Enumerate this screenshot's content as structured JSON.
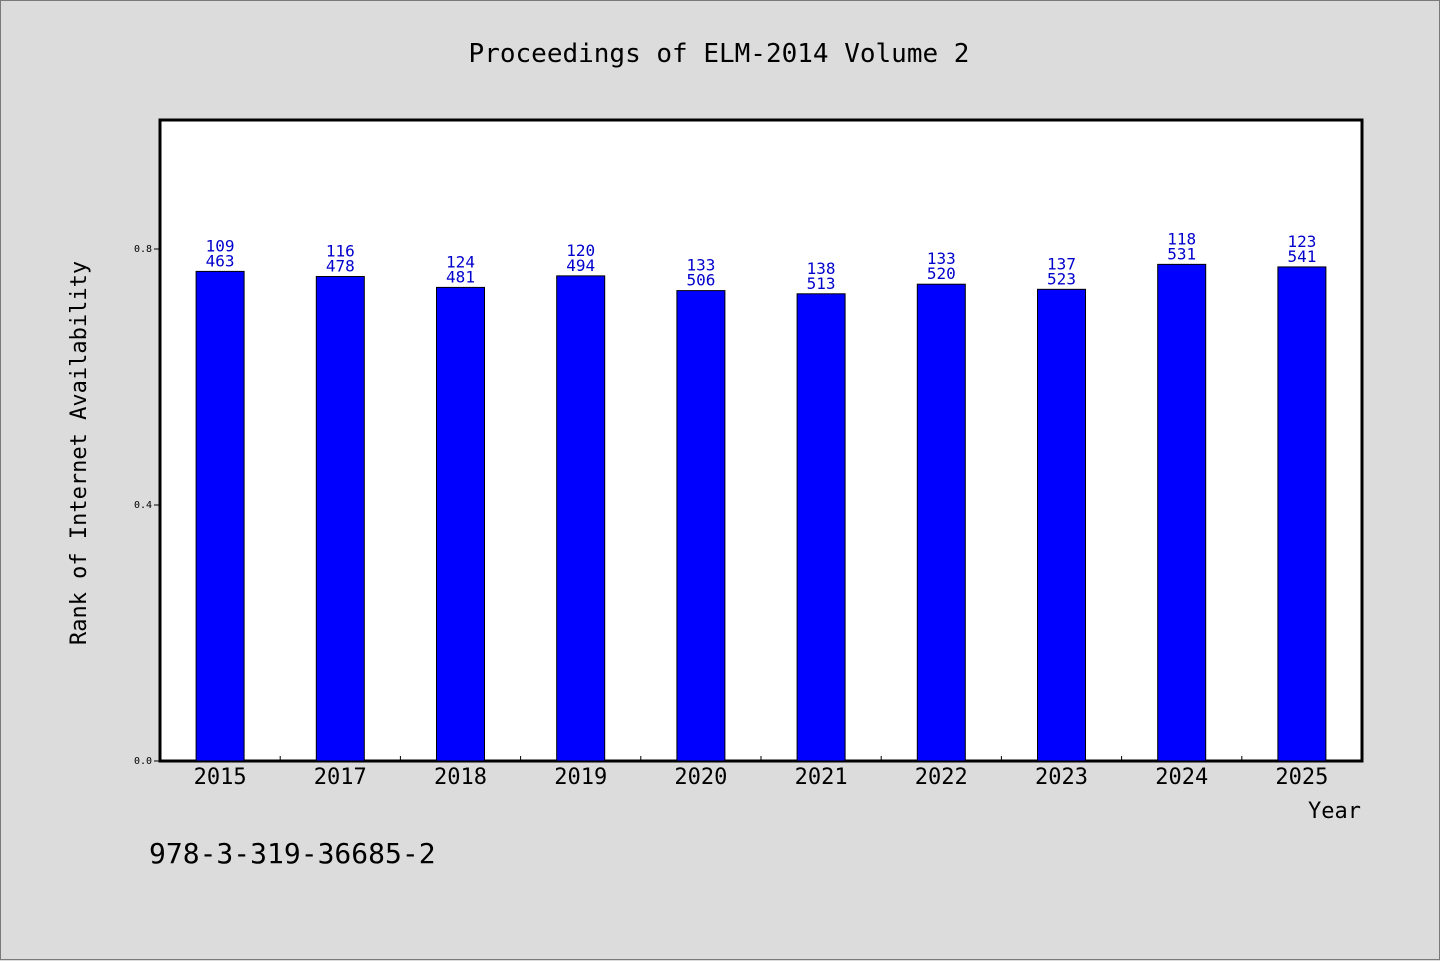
{
  "colors": {
    "background": "#dcdcdc",
    "plot_background": "#ffffff",
    "bar": "#0000ff",
    "bar_label": "#0000cc",
    "axis": "#000000"
  },
  "isbn": "978-3-319-36685-2",
  "chart_data": {
    "type": "bar",
    "title": "Proceedings of ELM-2014 Volume 2",
    "xlabel": "Year",
    "ylabel": "Rank of Internet Availability",
    "categories": [
      "2015",
      "2017",
      "2018",
      "2019",
      "2020",
      "2021",
      "2022",
      "2023",
      "2024",
      "2025"
    ],
    "values": [
      0.765,
      0.757,
      0.74,
      0.758,
      0.735,
      0.73,
      0.745,
      0.737,
      0.776,
      0.772
    ],
    "labels_top": [
      "109",
      "116",
      "124",
      "120",
      "133",
      "138",
      "133",
      "137",
      "118",
      "123"
    ],
    "labels_bottom": [
      "463",
      "478",
      "481",
      "494",
      "506",
      "513",
      "520",
      "523",
      "531",
      "541"
    ],
    "ylim": [
      0,
      1.0
    ],
    "yticks": [
      0.0,
      0.4,
      0.8
    ],
    "ytick_labels": [
      "0.0",
      "0.4",
      "0.8"
    ],
    "grid": false,
    "legend": "none"
  }
}
